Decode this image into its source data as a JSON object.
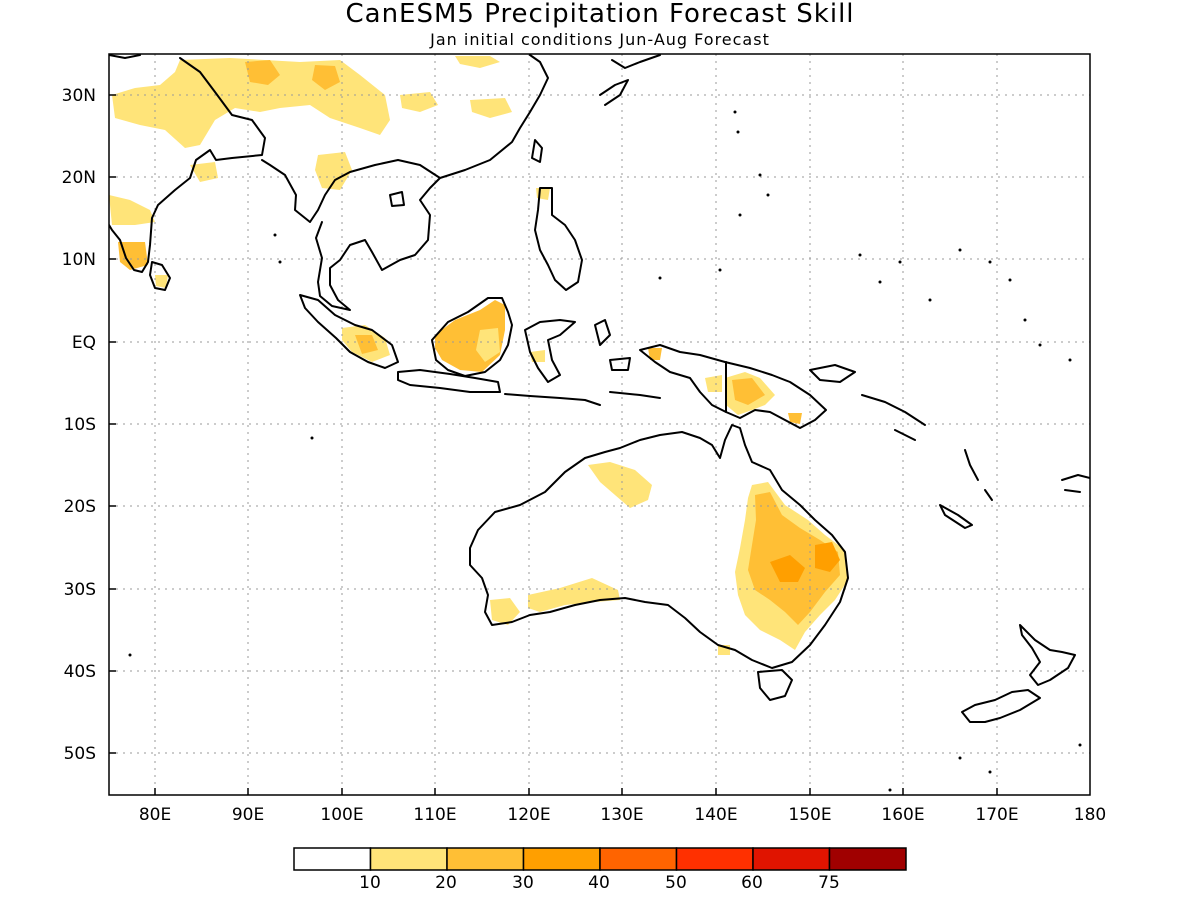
{
  "title": "CanESM5 Precipitation Forecast Skill",
  "subtitle": "Jan initial conditions  Jun-Aug Forecast",
  "map": {
    "region": "Indian Ocean / Maritime Continent / Australia / Western Pacific",
    "lon_range": [
      75,
      180
    ],
    "lat_range": [
      -55,
      35
    ],
    "x_ticks": [
      80,
      90,
      100,
      110,
      120,
      130,
      140,
      150,
      160,
      170,
      180
    ],
    "x_tick_labels": [
      "80E",
      "90E",
      "100E",
      "110E",
      "120E",
      "130E",
      "140E",
      "150E",
      "160E",
      "170E",
      "180"
    ],
    "y_ticks": [
      30,
      20,
      10,
      0,
      -10,
      -20,
      -30,
      -40,
      -50
    ],
    "y_tick_labels": [
      "30N",
      "20N",
      "10N",
      "EQ",
      "10S",
      "20S",
      "30S",
      "40S",
      "50S"
    ],
    "grid": true
  },
  "colorbar": {
    "levels": [
      "10",
      "20",
      "30",
      "40",
      "50",
      "60",
      "75"
    ],
    "colors": [
      "#ffffff",
      "#ffe479",
      "#ffbf35",
      "#ff9f00",
      "#ff6400",
      "#ff3000",
      "#e01400",
      "#a00000"
    ]
  }
}
